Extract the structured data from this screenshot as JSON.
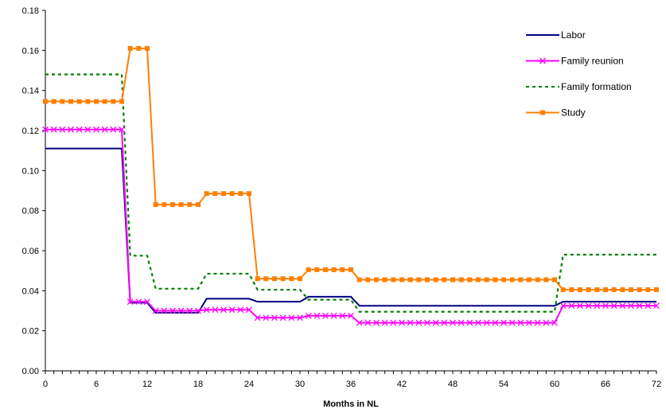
{
  "chart_data": {
    "type": "line",
    "title": "",
    "xlabel": "Months in NL",
    "ylabel": "",
    "xlim": [
      0,
      72
    ],
    "ylim": [
      0,
      0.18
    ],
    "x_ticks": [
      0,
      6,
      12,
      18,
      24,
      30,
      36,
      42,
      48,
      54,
      60,
      66,
      72
    ],
    "y_ticks": [
      "0.00",
      "0.02",
      "0.04",
      "0.06",
      "0.08",
      "0.10",
      "0.12",
      "0.14",
      "0.16",
      "0.18"
    ],
    "grid": false,
    "legend_position": "top-right",
    "series": [
      {
        "name": "Labor",
        "color": "#000080",
        "style": "solid",
        "marker": "none",
        "points": [
          [
            0,
            0.111
          ],
          [
            9,
            0.111
          ],
          [
            10,
            0.034
          ],
          [
            12,
            0.034
          ],
          [
            13,
            0.029
          ],
          [
            18,
            0.029
          ],
          [
            19,
            0.036
          ],
          [
            24,
            0.036
          ],
          [
            25,
            0.0345
          ],
          [
            30,
            0.0345
          ],
          [
            31,
            0.037
          ],
          [
            36,
            0.037
          ],
          [
            37,
            0.0325
          ],
          [
            60,
            0.0325
          ],
          [
            61,
            0.0345
          ],
          [
            72,
            0.0345
          ]
        ]
      },
      {
        "name": "Family reunion",
        "color": "#FF00FF",
        "style": "solid",
        "marker": "x",
        "points": [
          [
            0,
            0.1205
          ],
          [
            1,
            0.1205
          ],
          [
            2,
            0.1205
          ],
          [
            3,
            0.1205
          ],
          [
            4,
            0.1205
          ],
          [
            5,
            0.1205
          ],
          [
            6,
            0.1205
          ],
          [
            7,
            0.1205
          ],
          [
            8,
            0.1205
          ],
          [
            9,
            0.1205
          ],
          [
            10,
            0.0345
          ],
          [
            11,
            0.0345
          ],
          [
            12,
            0.0345
          ],
          [
            13,
            0.03
          ],
          [
            14,
            0.03
          ],
          [
            15,
            0.03
          ],
          [
            16,
            0.03
          ],
          [
            17,
            0.03
          ],
          [
            18,
            0.03
          ],
          [
            19,
            0.0305
          ],
          [
            20,
            0.0305
          ],
          [
            21,
            0.0305
          ],
          [
            22,
            0.0305
          ],
          [
            23,
            0.0305
          ],
          [
            24,
            0.0305
          ],
          [
            25,
            0.0265
          ],
          [
            26,
            0.0265
          ],
          [
            27,
            0.0265
          ],
          [
            28,
            0.0265
          ],
          [
            29,
            0.0265
          ],
          [
            30,
            0.0265
          ],
          [
            31,
            0.0275
          ],
          [
            32,
            0.0275
          ],
          [
            33,
            0.0275
          ],
          [
            34,
            0.0275
          ],
          [
            35,
            0.0275
          ],
          [
            36,
            0.0275
          ],
          [
            37,
            0.024
          ],
          [
            38,
            0.024
          ],
          [
            39,
            0.024
          ],
          [
            40,
            0.024
          ],
          [
            41,
            0.024
          ],
          [
            42,
            0.024
          ],
          [
            43,
            0.024
          ],
          [
            44,
            0.024
          ],
          [
            45,
            0.024
          ],
          [
            46,
            0.024
          ],
          [
            47,
            0.024
          ],
          [
            48,
            0.024
          ],
          [
            49,
            0.024
          ],
          [
            50,
            0.024
          ],
          [
            51,
            0.024
          ],
          [
            52,
            0.024
          ],
          [
            53,
            0.024
          ],
          [
            54,
            0.024
          ],
          [
            55,
            0.024
          ],
          [
            56,
            0.024
          ],
          [
            57,
            0.024
          ],
          [
            58,
            0.024
          ],
          [
            59,
            0.024
          ],
          [
            60,
            0.024
          ],
          [
            61,
            0.0325
          ],
          [
            62,
            0.0325
          ],
          [
            63,
            0.0325
          ],
          [
            64,
            0.0325
          ],
          [
            65,
            0.0325
          ],
          [
            66,
            0.0325
          ],
          [
            67,
            0.0325
          ],
          [
            68,
            0.0325
          ],
          [
            69,
            0.0325
          ],
          [
            70,
            0.0325
          ],
          [
            71,
            0.0325
          ],
          [
            72,
            0.0325
          ]
        ]
      },
      {
        "name": "Family formation",
        "color": "#008000",
        "style": "dashed",
        "marker": "none",
        "points": [
          [
            0,
            0.148
          ],
          [
            9,
            0.148
          ],
          [
            10,
            0.0575
          ],
          [
            12,
            0.0575
          ],
          [
            13,
            0.041
          ],
          [
            18,
            0.041
          ],
          [
            19,
            0.0485
          ],
          [
            24,
            0.0485
          ],
          [
            25,
            0.0405
          ],
          [
            30,
            0.0405
          ],
          [
            31,
            0.0355
          ],
          [
            36,
            0.0355
          ],
          [
            37,
            0.0295
          ],
          [
            60,
            0.0295
          ],
          [
            61,
            0.058
          ],
          [
            72,
            0.058
          ]
        ]
      },
      {
        "name": "Study",
        "color": "#FF7F00",
        "style": "solid",
        "marker": "square",
        "points": [
          [
            0,
            0.1345
          ],
          [
            1,
            0.1345
          ],
          [
            2,
            0.1345
          ],
          [
            3,
            0.1345
          ],
          [
            4,
            0.1345
          ],
          [
            5,
            0.1345
          ],
          [
            6,
            0.1345
          ],
          [
            7,
            0.1345
          ],
          [
            8,
            0.1345
          ],
          [
            9,
            0.1345
          ],
          [
            10,
            0.161
          ],
          [
            11,
            0.161
          ],
          [
            12,
            0.161
          ],
          [
            13,
            0.083
          ],
          [
            14,
            0.083
          ],
          [
            15,
            0.083
          ],
          [
            16,
            0.083
          ],
          [
            17,
            0.083
          ],
          [
            18,
            0.083
          ],
          [
            19,
            0.0885
          ],
          [
            20,
            0.0885
          ],
          [
            21,
            0.0885
          ],
          [
            22,
            0.0885
          ],
          [
            23,
            0.0885
          ],
          [
            24,
            0.0885
          ],
          [
            25,
            0.046
          ],
          [
            26,
            0.046
          ],
          [
            27,
            0.046
          ],
          [
            28,
            0.046
          ],
          [
            29,
            0.046
          ],
          [
            30,
            0.046
          ],
          [
            31,
            0.0505
          ],
          [
            32,
            0.0505
          ],
          [
            33,
            0.0505
          ],
          [
            34,
            0.0505
          ],
          [
            35,
            0.0505
          ],
          [
            36,
            0.0505
          ],
          [
            37,
            0.0455
          ],
          [
            38,
            0.0455
          ],
          [
            39,
            0.0455
          ],
          [
            40,
            0.0455
          ],
          [
            41,
            0.0455
          ],
          [
            42,
            0.0455
          ],
          [
            43,
            0.0455
          ],
          [
            44,
            0.0455
          ],
          [
            45,
            0.0455
          ],
          [
            46,
            0.0455
          ],
          [
            47,
            0.0455
          ],
          [
            48,
            0.0455
          ],
          [
            49,
            0.0455
          ],
          [
            50,
            0.0455
          ],
          [
            51,
            0.0455
          ],
          [
            52,
            0.0455
          ],
          [
            53,
            0.0455
          ],
          [
            54,
            0.0455
          ],
          [
            55,
            0.0455
          ],
          [
            56,
            0.0455
          ],
          [
            57,
            0.0455
          ],
          [
            58,
            0.0455
          ],
          [
            59,
            0.0455
          ],
          [
            60,
            0.0455
          ],
          [
            61,
            0.0405
          ],
          [
            62,
            0.0405
          ],
          [
            63,
            0.0405
          ],
          [
            64,
            0.0405
          ],
          [
            65,
            0.0405
          ],
          [
            66,
            0.0405
          ],
          [
            67,
            0.0405
          ],
          [
            68,
            0.0405
          ],
          [
            69,
            0.0405
          ],
          [
            70,
            0.0405
          ],
          [
            71,
            0.0405
          ],
          [
            72,
            0.0405
          ]
        ]
      }
    ]
  }
}
